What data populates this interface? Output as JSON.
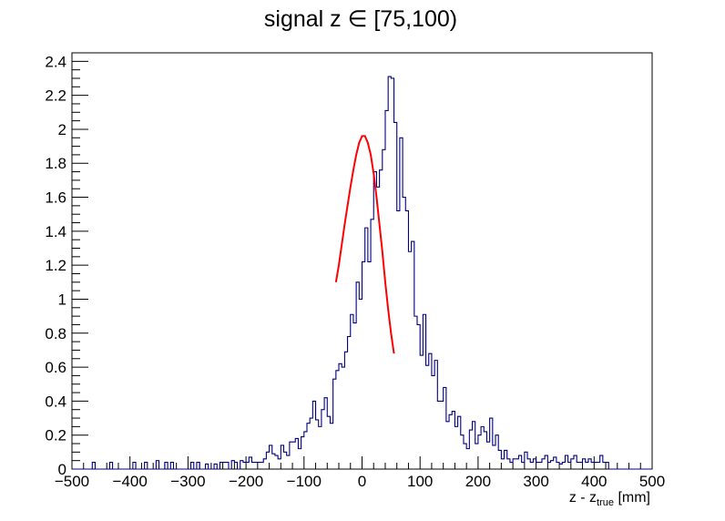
{
  "chart_data": {
    "type": "histogram",
    "title": "signal z ∈ [75,100)",
    "xlabel": {
      "main": "z - z",
      "subscript": "true",
      "unit": " [mm]"
    },
    "ylabel": "",
    "xlim": [
      -500,
      500
    ],
    "ylim": [
      0,
      2.45
    ],
    "grid": false,
    "x_ticks": [
      -500,
      -400,
      -300,
      -200,
      -100,
      0,
      100,
      200,
      300,
      400,
      500
    ],
    "x_tick_labels": [
      "−500",
      "−400",
      "−300",
      "−200",
      "−100",
      "0",
      "100",
      "200",
      "300",
      "400",
      "500"
    ],
    "y_ticks": [
      0,
      0.2,
      0.4,
      0.6,
      0.8,
      1,
      1.2,
      1.4,
      1.6,
      1.8,
      2,
      2.2,
      2.4
    ],
    "y_tick_labels": [
      "0",
      "0.2",
      "0.4",
      "0.6",
      "0.8",
      "1",
      "1.2",
      "1.4",
      "1.6",
      "1.8",
      "2",
      "2.2",
      "2.4"
    ],
    "bin_width": 5,
    "series": [
      {
        "kind": "histogram",
        "color": "#000080",
        "bins": [
          [
            -465,
            0.04
          ],
          [
            -435,
            0.04
          ],
          [
            -395,
            0.04
          ],
          [
            -375,
            0.04
          ],
          [
            -355,
            0.05
          ],
          [
            -340,
            0.04
          ],
          [
            -330,
            0.04
          ],
          [
            -295,
            0.04
          ],
          [
            -285,
            0.04
          ],
          [
            -270,
            0.03
          ],
          [
            -255,
            0.03
          ],
          [
            -245,
            0.04
          ],
          [
            -240,
            0.04
          ],
          [
            -235,
            0.04
          ],
          [
            -225,
            0.05
          ],
          [
            -220,
            0.04
          ],
          [
            -210,
            0.05
          ],
          [
            -205,
            0.04
          ],
          [
            -200,
            0.04
          ],
          [
            -195,
            0.07
          ],
          [
            -190,
            0.04
          ],
          [
            -185,
            0.04
          ],
          [
            -180,
            0.04
          ],
          [
            -175,
            0.04
          ],
          [
            -170,
            0.06
          ],
          [
            -165,
            0.1
          ],
          [
            -160,
            0.14
          ],
          [
            -155,
            0.09
          ],
          [
            -150,
            0.08
          ],
          [
            -145,
            0.06
          ],
          [
            -140,
            0.14
          ],
          [
            -135,
            0.1
          ],
          [
            -130,
            0.08
          ],
          [
            -125,
            0.16
          ],
          [
            -120,
            0.16
          ],
          [
            -115,
            0.18
          ],
          [
            -110,
            0.12
          ],
          [
            -105,
            0.19
          ],
          [
            -100,
            0.22
          ],
          [
            -95,
            0.27
          ],
          [
            -90,
            0.3
          ],
          [
            -85,
            0.4
          ],
          [
            -80,
            0.29
          ],
          [
            -75,
            0.25
          ],
          [
            -70,
            0.35
          ],
          [
            -65,
            0.42
          ],
          [
            -60,
            0.31
          ],
          [
            -55,
            0.27
          ],
          [
            -50,
            0.53
          ],
          [
            -45,
            0.58
          ],
          [
            -40,
            0.62
          ],
          [
            -35,
            0.6
          ],
          [
            -30,
            0.69
          ],
          [
            -25,
            0.78
          ],
          [
            -20,
            0.91
          ],
          [
            -15,
            0.86
          ],
          [
            -10,
            1.1
          ],
          [
            -5,
            1.0
          ],
          [
            0,
            1.22
          ],
          [
            5,
            1.42
          ],
          [
            10,
            1.22
          ],
          [
            15,
            1.47
          ],
          [
            20,
            1.75
          ],
          [
            25,
            1.66
          ],
          [
            30,
            1.76
          ],
          [
            35,
            1.88
          ],
          [
            40,
            2.11
          ],
          [
            45,
            2.31
          ],
          [
            50,
            2.3
          ],
          [
            55,
            2.04
          ],
          [
            60,
            1.52
          ],
          [
            65,
            1.95
          ],
          [
            70,
            1.6
          ],
          [
            75,
            1.52
          ],
          [
            80,
            1.28
          ],
          [
            85,
            1.34
          ],
          [
            90,
            0.9
          ],
          [
            95,
            0.85
          ],
          [
            100,
            0.67
          ],
          [
            105,
            0.91
          ],
          [
            110,
            0.61
          ],
          [
            115,
            0.68
          ],
          [
            120,
            0.55
          ],
          [
            125,
            0.64
          ],
          [
            130,
            0.4
          ],
          [
            135,
            0.4
          ],
          [
            140,
            0.48
          ],
          [
            145,
            0.28
          ],
          [
            150,
            0.32
          ],
          [
            155,
            0.34
          ],
          [
            160,
            0.25
          ],
          [
            165,
            0.31
          ],
          [
            170,
            0.2
          ],
          [
            175,
            0.15
          ],
          [
            180,
            0.12
          ],
          [
            185,
            0.23
          ],
          [
            190,
            0.28
          ],
          [
            195,
            0.15
          ],
          [
            200,
            0.2
          ],
          [
            205,
            0.25
          ],
          [
            210,
            0.22
          ],
          [
            215,
            0.16
          ],
          [
            220,
            0.3
          ],
          [
            225,
            0.14
          ],
          [
            230,
            0.2
          ],
          [
            235,
            0.11
          ],
          [
            240,
            0.06
          ],
          [
            245,
            0.11
          ],
          [
            250,
            0.06
          ],
          [
            255,
            0.04
          ],
          [
            260,
            0.06
          ],
          [
            265,
            0.06
          ],
          [
            270,
            0.08
          ],
          [
            275,
            0.04
          ],
          [
            280,
            0.1
          ],
          [
            285,
            0.06
          ],
          [
            290,
            0.04
          ],
          [
            295,
            0.06
          ],
          [
            300,
            0.04
          ],
          [
            305,
            0.04
          ],
          [
            310,
            0.06
          ],
          [
            315,
            0.08
          ],
          [
            320,
            0.04
          ],
          [
            325,
            0.05
          ],
          [
            330,
            0.07
          ],
          [
            335,
            0.04
          ],
          [
            340,
            0.03
          ],
          [
            345,
            0.04
          ],
          [
            350,
            0.08
          ],
          [
            355,
            0.04
          ],
          [
            360,
            0.06
          ],
          [
            365,
            0.08
          ],
          [
            370,
            0.04
          ],
          [
            375,
            0.04
          ],
          [
            380,
            0.06
          ],
          [
            385,
            0.04
          ],
          [
            390,
            0.06
          ],
          [
            395,
            0.04
          ],
          [
            400,
            0.04
          ],
          [
            405,
            0.04
          ],
          [
            410,
            0.08
          ],
          [
            415,
            0.04
          ],
          [
            420,
            0.04
          ]
        ]
      },
      {
        "kind": "fit-line",
        "color": "#ff0000",
        "x": [
          -45,
          -40,
          -35,
          -30,
          -25,
          -20,
          -15,
          -10,
          -5,
          0,
          5,
          10,
          15,
          20,
          25,
          30,
          35,
          40,
          45,
          50,
          55
        ],
        "y": [
          1.1,
          1.2,
          1.32,
          1.44,
          1.55,
          1.66,
          1.76,
          1.85,
          1.92,
          1.96,
          1.96,
          1.92,
          1.85,
          1.74,
          1.6,
          1.44,
          1.28,
          1.1,
          0.94,
          0.8,
          0.68
        ]
      }
    ]
  }
}
